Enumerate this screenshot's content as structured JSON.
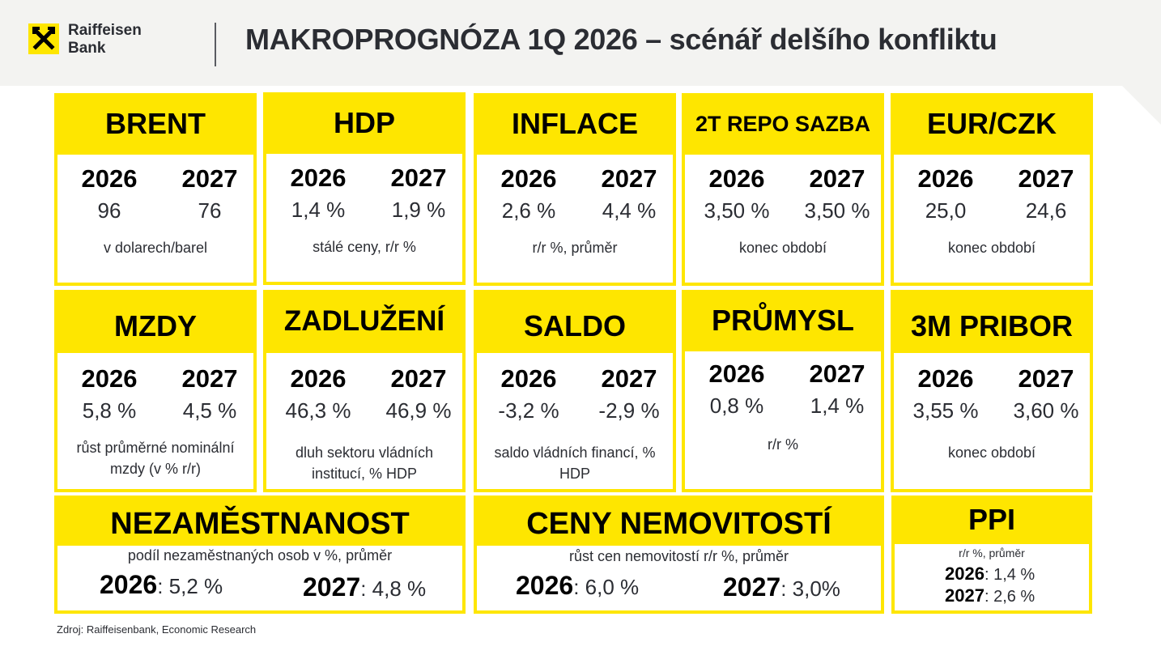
{
  "brand": {
    "line1": "Raiffeisen",
    "line2": "Bank"
  },
  "title": "MAKROPROGNÓZA 1Q 2026 – scénář delšího konfliktu",
  "cards": [
    {
      "head": "BRENT",
      "y1": "2026",
      "v1": "96",
      "y2": "2027",
      "v2": "76",
      "note": "v dolarech/barel"
    },
    {
      "head": "HDP",
      "y1": "2026",
      "v1": "1,4 %",
      "y2": "2027",
      "v2": "1,9 %",
      "note": "stálé ceny, r/r %"
    },
    {
      "head": "INFLACE",
      "y1": "2026",
      "v1": "2,6 %",
      "y2": "2027",
      "v2": "4,4 %",
      "note": "r/r %, průměr"
    },
    {
      "head": "2T REPO SAZBA",
      "y1": "2026",
      "v1": "3,50 %",
      "y2": "2027",
      "v2": "3,50 %",
      "note": "konec období"
    },
    {
      "head": "EUR/CZK",
      "y1": "2026",
      "v1": "25,0",
      "y2": "2027",
      "v2": "24,6",
      "note": "konec období"
    },
    {
      "head": "MZDY",
      "y1": "2026",
      "v1": "5,8 %",
      "y2": "2027",
      "v2": "4,5 %",
      "note": "růst průměrné nominální mzdy (v % r/r)"
    },
    {
      "head": "ZADLUŽENÍ",
      "y1": "2026",
      "v1": "46,3 %",
      "y2": "2027",
      "v2": "46,9 %",
      "note": "dluh sektoru vládních institucí, % HDP"
    },
    {
      "head": "SALDO",
      "y1": "2026",
      "v1": "-3,2 %",
      "y2": "2027",
      "v2": "-2,9 %",
      "note": "saldo vládních financí, % HDP"
    },
    {
      "head": "PRŮMYSL",
      "y1": "2026",
      "v1": "0,8 %",
      "y2": "2027",
      "v2": "1,4 %",
      "note": "r/r %"
    },
    {
      "head": "3M PRIBOR",
      "y1": "2026",
      "v1": "3,55 %",
      "y2": "2027",
      "v2": "3,60 %",
      "note": "konec období"
    }
  ],
  "unemployment": {
    "head": "NEZAMĚSTNANOST",
    "sub": "podíl nezaměstnaných osob v %, průměr",
    "y1": "2026",
    "v1": ": 5,2 %",
    "y2": "2027",
    "v2": ": 4,8 %"
  },
  "housing": {
    "head": "CENY NEMOVITOSTÍ",
    "sub": "růst cen nemovitostí r/r %, průměr",
    "y1": "2026",
    "v1": ": 6,0 %",
    "y2": "2027",
    "v2": ": 3,0%"
  },
  "ppi": {
    "head": "PPI",
    "sub": "r/r %,  průměr",
    "y1": "2026",
    "v1": ": 1,4 %",
    "y2": "2027",
    "v2": ": 2,6 %"
  },
  "source": "Zdroj: Raiffeisenbank, Economic Research",
  "colors": {
    "accent": "#fee600",
    "text": "#2b2d33",
    "band": "#f3f3f1"
  },
  "icons": {
    "logo": "raiffeisen-crossed-horses-icon"
  }
}
